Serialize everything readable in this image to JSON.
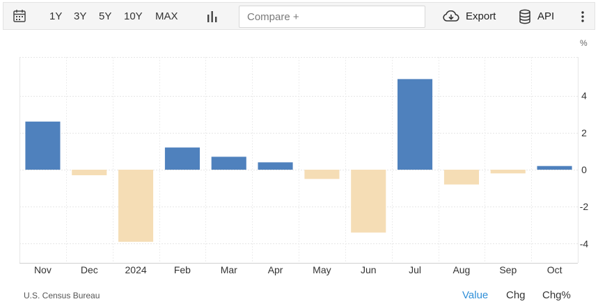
{
  "toolbar": {
    "ranges": [
      "1Y",
      "3Y",
      "5Y",
      "10Y",
      "MAX"
    ],
    "compare_placeholder": "Compare +",
    "export_label": "Export",
    "api_label": "API"
  },
  "chart_data": {
    "type": "bar",
    "categories": [
      "Nov",
      "Dec",
      "2024",
      "Feb",
      "Mar",
      "Apr",
      "May",
      "Jun",
      "Jul",
      "Aug",
      "Sep",
      "Oct"
    ],
    "values": [
      2.6,
      -0.3,
      -3.9,
      1.2,
      0.7,
      0.4,
      -0.5,
      -3.4,
      4.9,
      -0.8,
      -0.2,
      0.2
    ],
    "ylim": [
      -5,
      5.5
    ],
    "yticks": [
      -4,
      -2,
      0,
      2,
      4
    ],
    "unit_label": "%",
    "positive_color": "#4f81bd",
    "negative_color": "#f5ddb5",
    "grid": true
  },
  "footer": {
    "source": "U.S. Census Bureau",
    "tabs": [
      "Value",
      "Chg",
      "Chg%"
    ],
    "active_tab": "Value"
  }
}
